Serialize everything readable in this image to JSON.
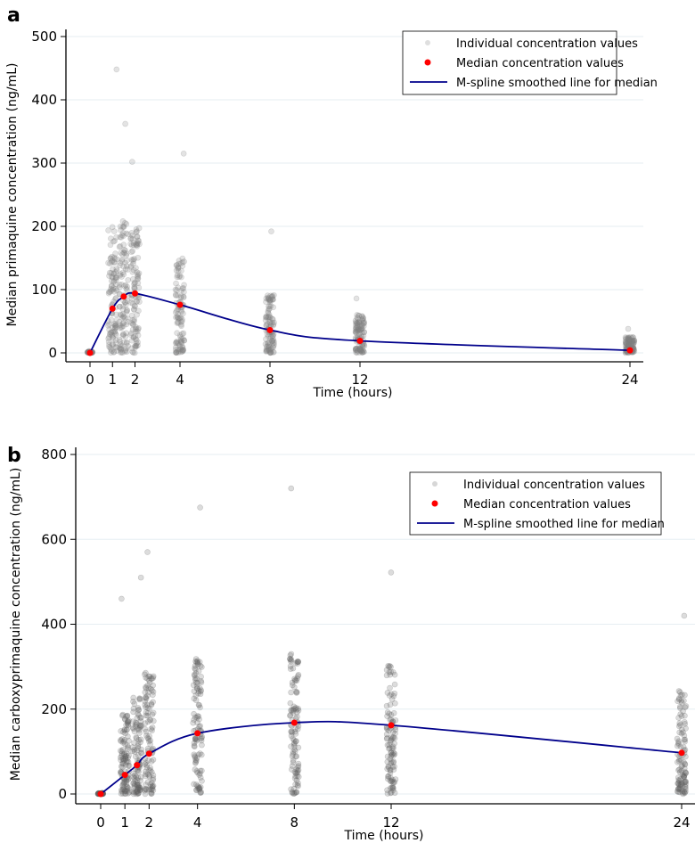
{
  "chart_data": [
    {
      "type": "scatter",
      "panel_label": "a",
      "xlabel": "Time (hours)",
      "ylabel": "Median primaquine concentration (ng/mL)",
      "xticks": [
        0,
        1,
        2,
        4,
        8,
        12,
        24
      ],
      "yticks": [
        0,
        100,
        200,
        300,
        400,
        500
      ],
      "xlim": [
        -0.6,
        25
      ],
      "ylim": [
        -15,
        515
      ],
      "grid": true,
      "legend_position": "top-right",
      "legend": [
        "Individual concentration values",
        "Median concentration values",
        "M-spline smoothed line for median"
      ],
      "median_series": {
        "x": [
          0,
          1,
          1.5,
          2,
          4,
          8,
          12,
          24
        ],
        "y": [
          0,
          70,
          89,
          94,
          76,
          36,
          19,
          4
        ]
      },
      "individual_spread": {
        "x": [
          0,
          1,
          1.5,
          2,
          4,
          8,
          12,
          24
        ],
        "max": [
          3,
          448,
          362,
          302,
          315,
          192,
          86,
          38
        ],
        "typical_max": [
          2,
          200,
          210,
          200,
          150,
          95,
          60,
          25
        ]
      },
      "colors": {
        "individual": "#808080",
        "median": "#ff0000",
        "spline": "#00008b",
        "grid": "#e6eef2"
      }
    },
    {
      "type": "scatter",
      "panel_label": "b",
      "xlabel": "Time (hours)",
      "ylabel": "Median carboxyprimaquine concentration (ng/mL)",
      "xticks": [
        0,
        1,
        2,
        4,
        8,
        12,
        24
      ],
      "yticks": [
        0,
        200,
        400,
        600,
        800
      ],
      "xlim": [
        -0.6,
        25
      ],
      "ylim": [
        -25,
        825
      ],
      "grid": true,
      "legend_position": "top-right",
      "legend": [
        "Individual concentration values",
        "Median concentration values",
        "M-spline smoothed line for median"
      ],
      "median_series": {
        "x": [
          0,
          1,
          1.5,
          2,
          4,
          8,
          12,
          24
        ],
        "y": [
          0,
          45,
          68,
          95,
          143,
          168,
          162,
          97
        ]
      },
      "individual_spread": {
        "x": [
          0,
          1,
          1.5,
          2,
          4,
          8,
          12,
          24
        ],
        "max": [
          3,
          460,
          510,
          570,
          675,
          720,
          522,
          420
        ],
        "typical_max": [
          2,
          190,
          230,
          290,
          320,
          330,
          310,
          250
        ]
      },
      "colors": {
        "individual": "#606060",
        "median": "#ff0000",
        "spline": "#00008b",
        "grid": "#e6eef2"
      }
    }
  ]
}
